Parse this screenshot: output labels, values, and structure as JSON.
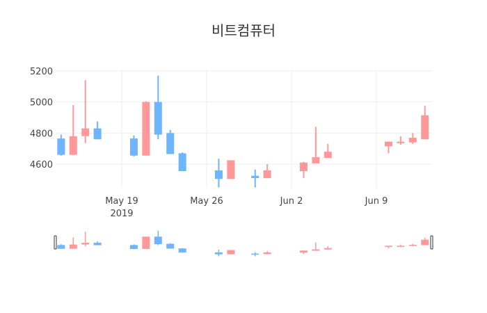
{
  "chart_data": {
    "type": "candlestick",
    "title": "비트컴퓨터",
    "xlabel": "",
    "ylabel": "",
    "ylim": [
      4420,
      5210
    ],
    "x_ticks": [
      {
        "label": "May 19",
        "sub": "2019",
        "date": "2019-05-19"
      },
      {
        "label": "May 26",
        "sub": "",
        "date": "2019-05-26"
      },
      {
        "label": "Jun 2",
        "sub": "",
        "date": "2019-06-02"
      },
      {
        "label": "Jun 9",
        "sub": "",
        "date": "2019-06-09"
      }
    ],
    "y_ticks": [
      4600,
      4800,
      5000,
      5200
    ],
    "increasing_color": "#FF9999",
    "decreasing_color": "#6EB4FF",
    "grid": true,
    "rangeslider": true,
    "series": [
      {
        "date": "2019-05-14",
        "open": 4765,
        "high": 4790,
        "low": 4655,
        "close": 4660
      },
      {
        "date": "2019-05-15",
        "open": 4660,
        "high": 4980,
        "low": 4660,
        "close": 4780
      },
      {
        "date": "2019-05-16",
        "open": 4780,
        "high": 5140,
        "low": 4735,
        "close": 4830
      },
      {
        "date": "2019-05-17",
        "open": 4830,
        "high": 4875,
        "low": 4760,
        "close": 4760
      },
      {
        "date": "2019-05-20",
        "open": 4765,
        "high": 4785,
        "low": 4650,
        "close": 4655
      },
      {
        "date": "2019-05-21",
        "open": 4655,
        "high": 5005,
        "low": 4655,
        "close": 5000
      },
      {
        "date": "2019-05-22",
        "open": 5000,
        "high": 5170,
        "low": 4760,
        "close": 4790
      },
      {
        "date": "2019-05-23",
        "open": 4800,
        "high": 4820,
        "low": 4665,
        "close": 4665
      },
      {
        "date": "2019-05-24",
        "open": 4670,
        "high": 4675,
        "low": 4555,
        "close": 4555
      },
      {
        "date": "2019-05-27",
        "open": 4560,
        "high": 4635,
        "low": 4450,
        "close": 4505
      },
      {
        "date": "2019-05-28",
        "open": 4505,
        "high": 4625,
        "low": 4505,
        "close": 4625
      },
      {
        "date": "2019-05-30",
        "open": 4525,
        "high": 4565,
        "low": 4450,
        "close": 4510
      },
      {
        "date": "2019-05-31",
        "open": 4510,
        "high": 4600,
        "low": 4510,
        "close": 4560
      },
      {
        "date": "2019-06-03",
        "open": 4555,
        "high": 4615,
        "low": 4510,
        "close": 4610
      },
      {
        "date": "2019-06-04",
        "open": 4605,
        "high": 4840,
        "low": 4605,
        "close": 4645
      },
      {
        "date": "2019-06-05",
        "open": 4640,
        "high": 4730,
        "low": 4640,
        "close": 4680
      },
      {
        "date": "2019-06-10",
        "open": 4715,
        "high": 4745,
        "low": 4670,
        "close": 4745
      },
      {
        "date": "2019-06-11",
        "open": 4735,
        "high": 4780,
        "low": 4725,
        "close": 4745
      },
      {
        "date": "2019-06-12",
        "open": 4740,
        "high": 4800,
        "low": 4730,
        "close": 4770
      },
      {
        "date": "2019-06-13",
        "open": 4760,
        "high": 4975,
        "low": 4760,
        "close": 4915
      }
    ]
  }
}
